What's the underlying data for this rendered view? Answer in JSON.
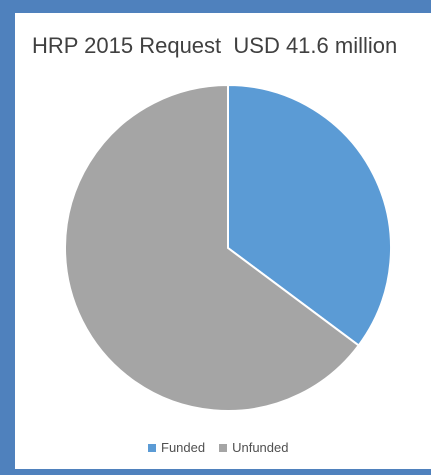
{
  "chart_data": {
    "type": "pie",
    "title": "HRP 2015 Request  USD 41.6 million",
    "legend_position": "bottom",
    "slices": [
      {
        "label": "Funded",
        "value": 35.2,
        "color": "#5b9bd5"
      },
      {
        "label": "Unfunded",
        "value": 64.8,
        "color": "#a5a5a5"
      }
    ]
  }
}
